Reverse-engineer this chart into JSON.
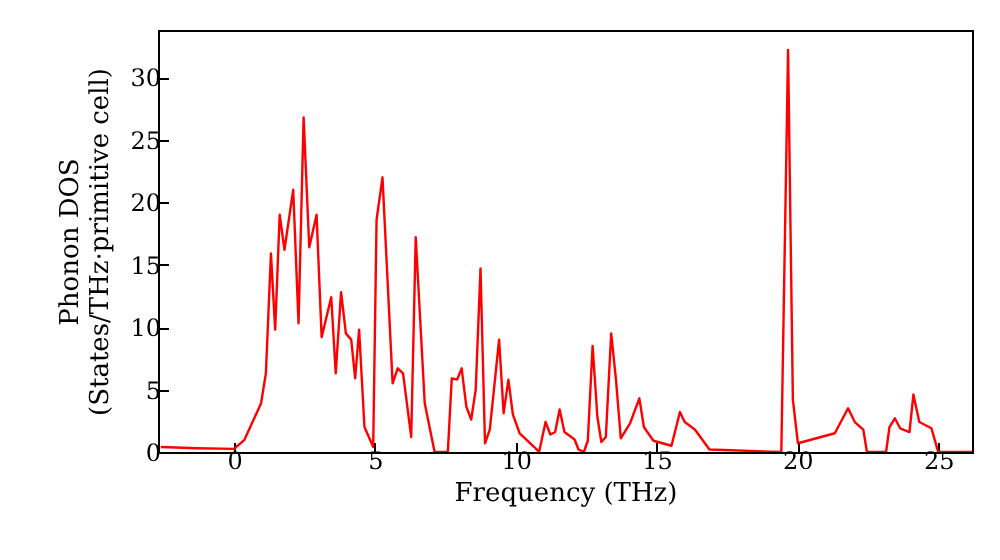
{
  "chart_data": {
    "type": "line",
    "xlabel": "Frequency (THz)",
    "ylabel": "Phonon DOS\n(States/THz·primitive cell)",
    "x": [
      -2.6,
      -1.3,
      0,
      0.36,
      0.96,
      1.13,
      1.31,
      1.46,
      1.62,
      1.79,
      2.1,
      2.29,
      2.47,
      2.67,
      2.93,
      3.11,
      3.45,
      3.61,
      3.8,
      3.97,
      4.16,
      4.3,
      4.44,
      4.63,
      4.94,
      5.06,
      5.27,
      5.63,
      5.81,
      6.0,
      6.29,
      6.45,
      6.77,
      7.12,
      7.59,
      7.73,
      7.92,
      8.08,
      8.25,
      8.42,
      8.58,
      8.75,
      8.91,
      9.08,
      9.41,
      9.57,
      9.74,
      9.9,
      10.14,
      10.66,
      10.83,
      11.06,
      11.23,
      11.4,
      11.56,
      11.73,
      12.09,
      12.23,
      12.42,
      12.56,
      12.73,
      12.9,
      13.04,
      13.2,
      13.39,
      13.56,
      13.73,
      14.06,
      14.39,
      14.55,
      14.89,
      15.53,
      15.83,
      16.0,
      16.36,
      16.88,
      19.43,
      19.67,
      19.84,
      20.02,
      21.33,
      21.8,
      22.04,
      22.34,
      22.47,
      23.15,
      23.27,
      23.46,
      23.65,
      23.98,
      24.12,
      24.33,
      24.76,
      25.0,
      26.2
    ],
    "series": [
      {
        "color": "#ff0000",
        "values": [
          0.4,
          0.3,
          0.25,
          0.95,
          3.9,
          6.3,
          15.9,
          9.8,
          19,
          16.2,
          21,
          10.3,
          26.8,
          16.4,
          19,
          9.2,
          12.4,
          6.3,
          12.8,
          9.5,
          9.0,
          5.9,
          9.8,
          2.0,
          0.4,
          18.6,
          22,
          5.5,
          6.7,
          6.3,
          1.2,
          17.2,
          3.9,
          0,
          0,
          5.9,
          5.8,
          6.7,
          3.6,
          2.6,
          5,
          14.7,
          0.7,
          1.8,
          9.0,
          3.1,
          5.8,
          3.0,
          1.5,
          0.4,
          0,
          2.4,
          1.4,
          1.6,
          3.4,
          1.6,
          1.0,
          0.2,
          0,
          0.9,
          8.5,
          2.8,
          0.8,
          1.2,
          9.5,
          5.8,
          1.1,
          2.3,
          4.3,
          2.0,
          0.9,
          0.5,
          3.2,
          2.4,
          1.8,
          0.2,
          0,
          32.2,
          4.2,
          0.7,
          1.5,
          3.5,
          2.4,
          1.8,
          0,
          0,
          2.0,
          2.7,
          1.9,
          1.6,
          4.6,
          2.4,
          1.9,
          0,
          0
        ]
      }
    ],
    "xlim": [
      -2.7,
      26.2
    ],
    "xticks": [
      0,
      5,
      10,
      15,
      20,
      25
    ],
    "ylim": [
      0,
      33.8
    ],
    "yticks": [
      0,
      5,
      10,
      15,
      20,
      25,
      30
    ],
    "grid": false,
    "marker": "none",
    "line_style": "solid"
  }
}
